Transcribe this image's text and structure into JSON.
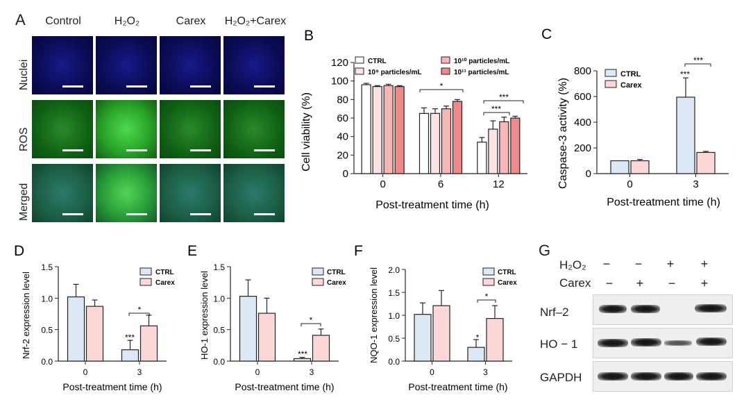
{
  "panelA": {
    "letter": "A",
    "columns": [
      "Control",
      "H₂O₂",
      "Carex",
      "H₂O₂+Carex"
    ],
    "rows": [
      "Nuclei",
      "ROS",
      "Merged"
    ]
  },
  "panelB": {
    "letter": "B",
    "ylabel": "Cell viability (%)",
    "xlabel": "Post-treatment time (h)",
    "legend": [
      "CTRL",
      "10⁹ particles/mL",
      "10¹⁰ particles/mL",
      "10¹¹ particles/mL"
    ],
    "sig": [
      "*",
      "***",
      "***"
    ],
    "yticks": [
      "0",
      "20",
      "40",
      "60",
      "80",
      "100",
      "120"
    ]
  },
  "panelC": {
    "letter": "C",
    "ylabel": "Caspase-3 activity (%)",
    "xlabel": "Post-treatment time (h)",
    "legend": [
      "CTRL",
      "Carex"
    ],
    "sig": [
      "***",
      "***"
    ],
    "yticks": [
      "0",
      "200",
      "400",
      "600",
      "800"
    ]
  },
  "panelD": {
    "letter": "D",
    "ylabel": "Nrf-2 expression level",
    "xlabel": "Post-treatment time (h)",
    "legend": [
      "CTRL",
      "Carex"
    ],
    "sig": [
      "***",
      "*"
    ],
    "yticks": [
      "0.0",
      "0.5",
      "1.0",
      "1.5"
    ]
  },
  "panelE": {
    "letter": "E",
    "ylabel": "HO-1 expression level",
    "xlabel": "Post-treatment time (h)",
    "legend": [
      "CTRL",
      "Carex"
    ],
    "sig": [
      "***",
      "*"
    ],
    "yticks": [
      "0.0",
      "0.5",
      "1.0",
      "1.5"
    ]
  },
  "panelF": {
    "letter": "F",
    "ylabel": "NQO-1 expression level",
    "xlabel": "Post-treatment time (h)",
    "legend": [
      "CTRL",
      "Carex"
    ],
    "sig": [
      "*",
      "*"
    ],
    "yticks": [
      "0.0",
      "0.5",
      "1.0",
      "1.5",
      "2.0"
    ]
  },
  "panelG": {
    "letter": "G",
    "h2o2_label": "H₂O₂",
    "carex_label": "Carex",
    "h2o2_signs": [
      "−",
      "−",
      "+",
      "+"
    ],
    "carex_signs": [
      "−",
      "+",
      "−",
      "+"
    ],
    "blots": [
      "Nrf–2",
      "HO − 1",
      "GAPDH"
    ]
  },
  "colors": {
    "ctrl": "#ffffff",
    "p9": "#fbe3e3",
    "p10": "#f7b7b7",
    "p11": "#ee8a8a",
    "ctrl2": "#dce8f6",
    "carex": "#fbd7d7"
  },
  "chart_data": [
    {
      "id": "B",
      "type": "bar",
      "categories": [
        "0",
        "6",
        "12"
      ],
      "series": [
        {
          "name": "CTRL",
          "values": [
            96,
            65,
            34
          ],
          "errors": [
            1.5,
            6,
            5
          ]
        },
        {
          "name": "10⁹ particles/mL",
          "values": [
            94,
            65,
            48
          ],
          "errors": [
            1,
            5,
            9
          ]
        },
        {
          "name": "10¹⁰ particles/mL",
          "values": [
            95,
            70,
            56
          ],
          "errors": [
            1.5,
            3,
            5
          ]
        },
        {
          "name": "10¹¹ particles/mL",
          "values": [
            94,
            78,
            60
          ],
          "errors": [
            1,
            2,
            2
          ]
        }
      ],
      "ylim": [
        0,
        120
      ]
    },
    {
      "id": "C",
      "type": "bar",
      "categories": [
        "0",
        "3"
      ],
      "series": [
        {
          "name": "CTRL",
          "values": [
            100,
            595
          ],
          "errors": [
            0,
            150
          ]
        },
        {
          "name": "Carex",
          "values": [
            100,
            165
          ],
          "errors": [
            10,
            8
          ]
        }
      ],
      "ylim": [
        0,
        800
      ]
    },
    {
      "id": "D",
      "type": "bar",
      "categories": [
        "0",
        "3"
      ],
      "series": [
        {
          "name": "CTRL",
          "values": [
            1.02,
            0.18
          ],
          "errors": [
            0.2,
            0.15
          ]
        },
        {
          "name": "Carex",
          "values": [
            0.87,
            0.56
          ],
          "errors": [
            0.1,
            0.17
          ]
        }
      ],
      "ylim": [
        0,
        1.5
      ]
    },
    {
      "id": "E",
      "type": "bar",
      "categories": [
        "0",
        "3"
      ],
      "series": [
        {
          "name": "CTRL",
          "values": [
            1.03,
            0.04
          ],
          "errors": [
            0.26,
            0.02
          ]
        },
        {
          "name": "Carex",
          "values": [
            0.76,
            0.41
          ],
          "errors": [
            0.24,
            0.1
          ]
        }
      ],
      "ylim": [
        0,
        1.5
      ]
    },
    {
      "id": "F",
      "type": "bar",
      "categories": [
        "0",
        "3"
      ],
      "series": [
        {
          "name": "CTRL",
          "values": [
            1.02,
            0.3
          ],
          "errors": [
            0.25,
            0.17
          ]
        },
        {
          "name": "Carex",
          "values": [
            1.21,
            0.93
          ],
          "errors": [
            0.33,
            0.28
          ]
        }
      ],
      "ylim": [
        0,
        2.0
      ]
    }
  ]
}
